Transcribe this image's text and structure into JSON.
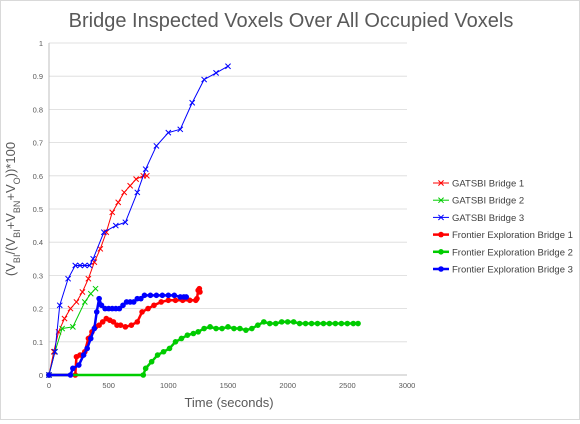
{
  "chart_data": {
    "type": "line",
    "title": "Bridge Inspected Voxels Over All Occupied Voxels",
    "xlabel": "Time (seconds)",
    "ylabel": "(V_BI/(V_BI+V_BN+V_O))*100",
    "xlim": [
      0,
      3000
    ],
    "ylim": [
      0,
      1
    ],
    "x_ticks": [
      0,
      500,
      1000,
      1500,
      2000,
      2500,
      3000
    ],
    "y_ticks": [
      0,
      0.1,
      0.2,
      0.3,
      0.4,
      0.5,
      0.6,
      0.7,
      0.8,
      0.9,
      1
    ],
    "grid": "major-y",
    "legend_position": "right",
    "series": [
      {
        "name": "GATSBI Bridge 1",
        "color": "#ff0000",
        "marker": "x",
        "line_width": 1,
        "x": [
          0,
          40,
          80,
          130,
          180,
          230,
          280,
          330,
          380,
          430,
          480,
          530,
          580,
          630,
          680,
          730,
          790,
          820
        ],
        "y": [
          0,
          0.07,
          0.13,
          0.17,
          0.2,
          0.22,
          0.25,
          0.29,
          0.34,
          0.38,
          0.43,
          0.49,
          0.52,
          0.55,
          0.57,
          0.59,
          0.6,
          0.6
        ]
      },
      {
        "name": "GATSBI Bridge 2",
        "color": "#00cc00",
        "marker": "x",
        "line_width": 1,
        "x": [
          0,
          50,
          110,
          200,
          300,
          350,
          390
        ],
        "y": [
          0,
          0.07,
          0.14,
          0.145,
          0.22,
          0.245,
          0.26
        ]
      },
      {
        "name": "GATSBI Bridge 3",
        "color": "#0000ff",
        "marker": "x",
        "line_width": 1,
        "x": [
          0,
          50,
          90,
          160,
          220,
          260,
          300,
          340,
          370,
          460,
          560,
          640,
          740,
          810,
          900,
          1000,
          1100,
          1200,
          1300,
          1400,
          1500
        ],
        "y": [
          0,
          0.07,
          0.21,
          0.29,
          0.33,
          0.33,
          0.33,
          0.33,
          0.35,
          0.43,
          0.45,
          0.46,
          0.55,
          0.62,
          0.69,
          0.73,
          0.74,
          0.82,
          0.89,
          0.91,
          0.93
        ]
      },
      {
        "name": "Frontier Exploration Bridge 1",
        "color": "#ff0000",
        "marker": "dot",
        "line_width": 2.5,
        "x": [
          0,
          220,
          230,
          260,
          280,
          300,
          330,
          360,
          390,
          420,
          450,
          480,
          510,
          540,
          570,
          600,
          640,
          690,
          740,
          780,
          830,
          880,
          940,
          1000,
          1060,
          1120,
          1180,
          1230,
          1240,
          1250,
          1260,
          1265
        ],
        "y": [
          0,
          0,
          0.055,
          0.06,
          0.06,
          0.07,
          0.11,
          0.13,
          0.145,
          0.15,
          0.16,
          0.17,
          0.165,
          0.16,
          0.15,
          0.15,
          0.145,
          0.15,
          0.16,
          0.19,
          0.2,
          0.21,
          0.22,
          0.225,
          0.225,
          0.225,
          0.225,
          0.225,
          0.23,
          0.255,
          0.26,
          0.25
        ]
      },
      {
        "name": "Frontier Exploration Bridge 2",
        "color": "#00cc00",
        "marker": "dot",
        "line_width": 2.5,
        "x": [
          0,
          790,
          810,
          860,
          910,
          960,
          1010,
          1060,
          1110,
          1160,
          1210,
          1250,
          1300,
          1350,
          1400,
          1450,
          1500,
          1550,
          1600,
          1650,
          1700,
          1750,
          1800,
          1850,
          1900,
          1950,
          2000,
          2050,
          2100,
          2150,
          2200,
          2250,
          2300,
          2350,
          2400,
          2450,
          2500,
          2550,
          2590
        ],
        "y": [
          0,
          0,
          0.02,
          0.04,
          0.06,
          0.07,
          0.08,
          0.1,
          0.11,
          0.12,
          0.125,
          0.13,
          0.14,
          0.145,
          0.14,
          0.14,
          0.145,
          0.14,
          0.14,
          0.135,
          0.14,
          0.15,
          0.16,
          0.155,
          0.155,
          0.16,
          0.16,
          0.16,
          0.155,
          0.155,
          0.155,
          0.155,
          0.155,
          0.155,
          0.155,
          0.155,
          0.155,
          0.155,
          0.155
        ]
      },
      {
        "name": "Frontier Exploration Bridge 3",
        "color": "#0000ff",
        "marker": "dot",
        "line_width": 2.5,
        "x": [
          0,
          180,
          200,
          250,
          290,
          320,
          350,
          380,
          400,
          420,
          440,
          470,
          500,
          530,
          560,
          590,
          620,
          650,
          680,
          710,
          740,
          770,
          800,
          850,
          900,
          950,
          1000,
          1050,
          1100,
          1130,
          1150
        ],
        "y": [
          0,
          0,
          0.02,
          0.03,
          0.06,
          0.08,
          0.11,
          0.14,
          0.19,
          0.23,
          0.21,
          0.2,
          0.2,
          0.2,
          0.2,
          0.2,
          0.21,
          0.22,
          0.22,
          0.22,
          0.23,
          0.23,
          0.24,
          0.24,
          0.24,
          0.24,
          0.24,
          0.24,
          0.235,
          0.235,
          0.235
        ]
      }
    ]
  }
}
